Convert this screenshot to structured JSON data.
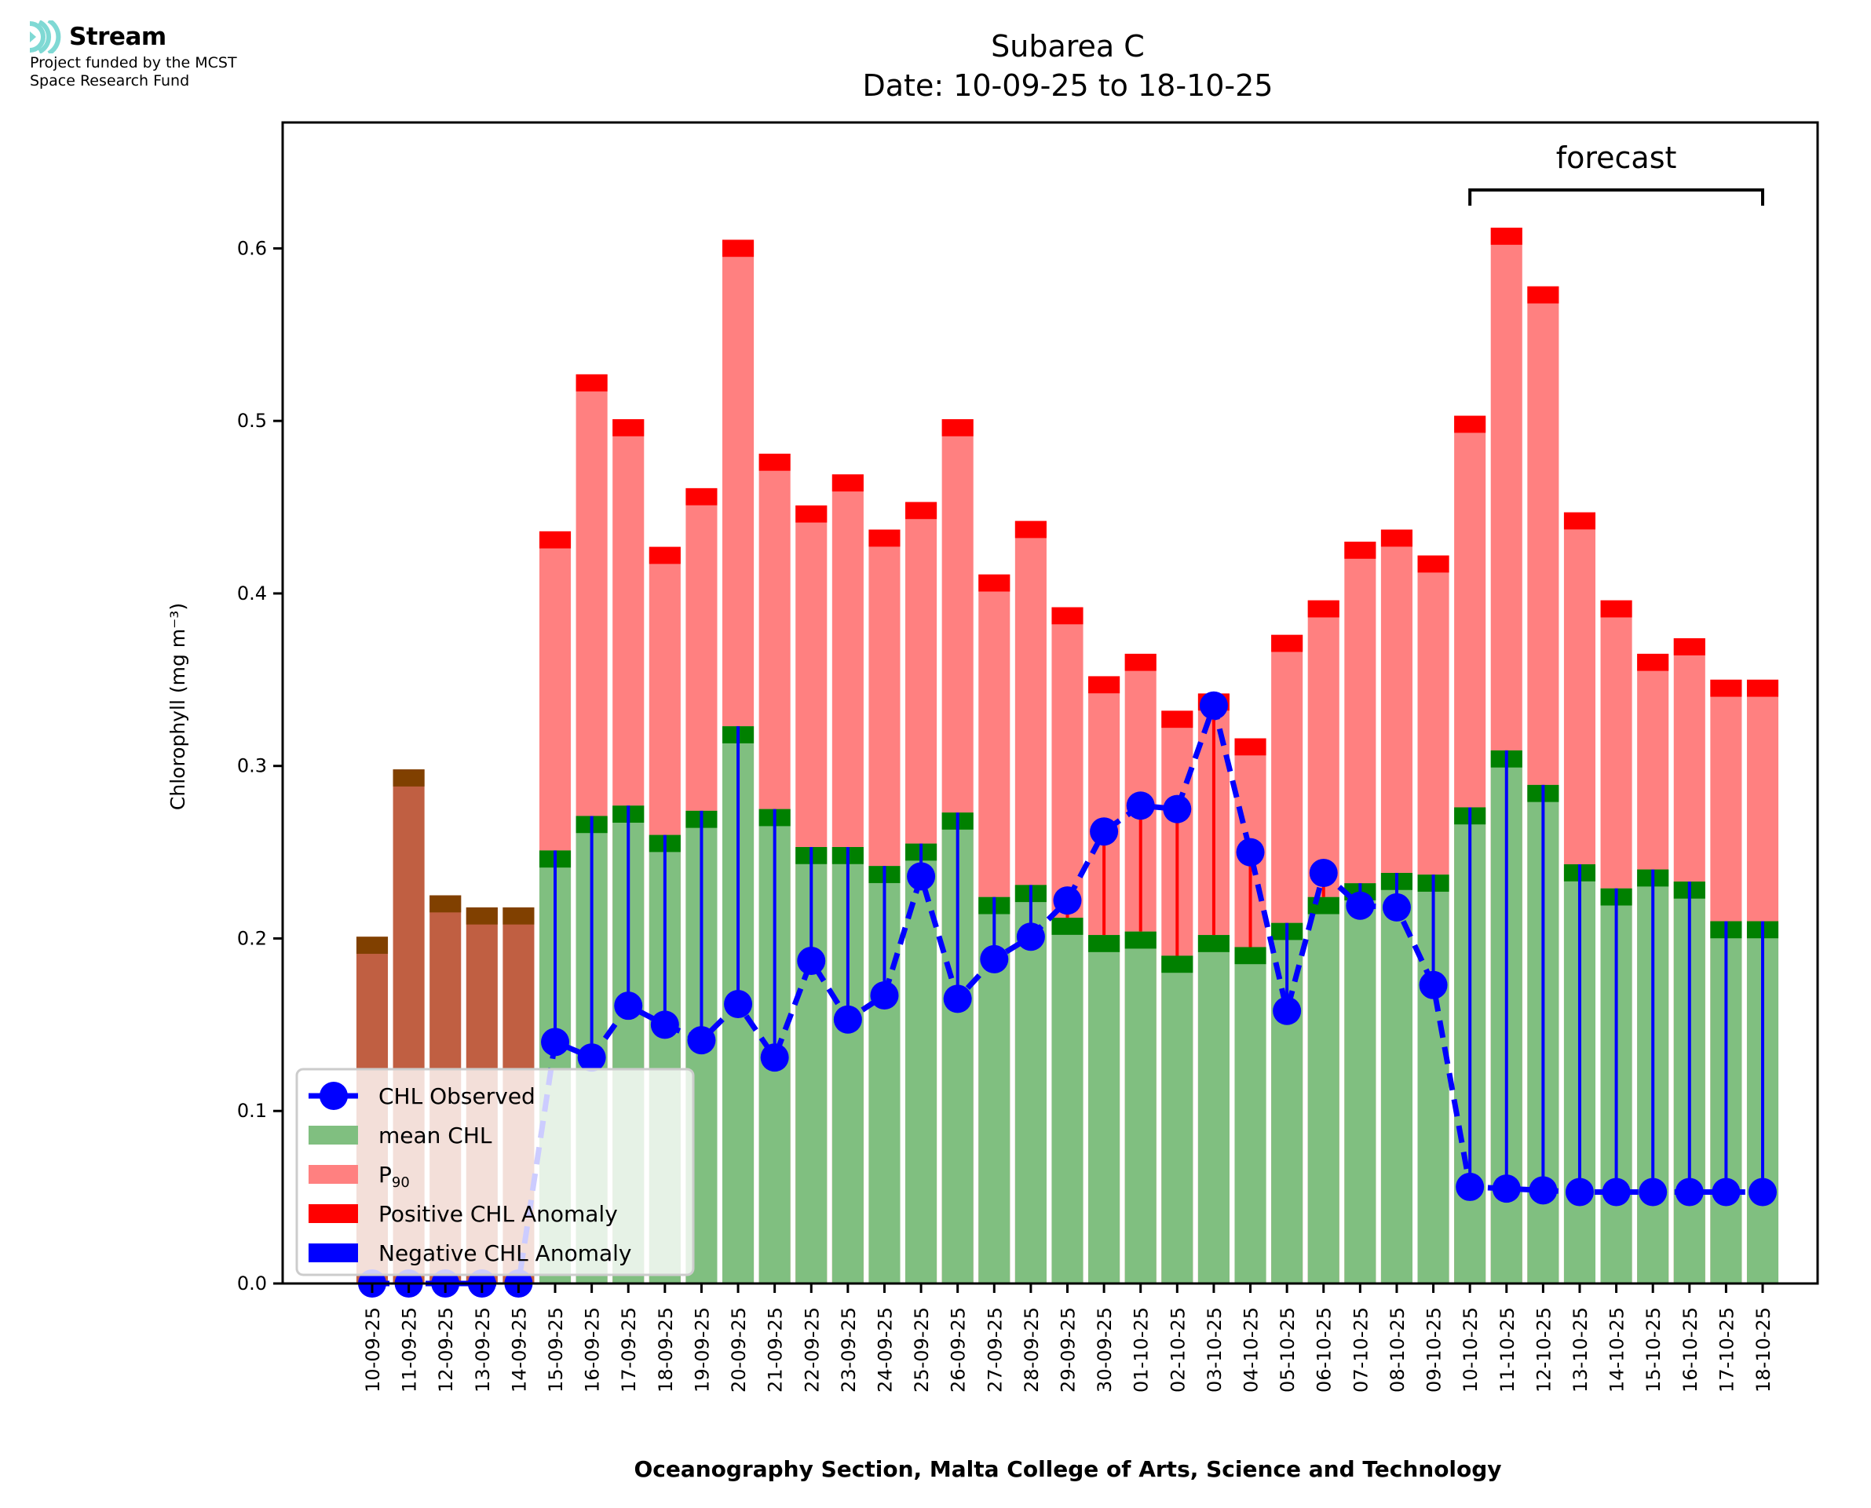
{
  "logo": {
    "brand_name": "Stream",
    "funding_line1": "Project funded by the MCST",
    "funding_line2": "Space Research Fund",
    "icon": "stream-waves-icon",
    "icon_color": "#7FD9D4"
  },
  "footer": {
    "credit": "Oceanography Section, Malta College of Arts, Science and Technology"
  },
  "chart_data": {
    "type": "bar",
    "title": "Subarea C",
    "subtitle": "Date: 10-09-25 to 18-10-25",
    "xlabel": "Oceanography Section, Malta College of Arts, Science and Technology",
    "ylabel": "Chlorophyll (mg m⁻³)",
    "ylim": [
      0,
      0.673
    ],
    "yticks": [
      0.0,
      0.1,
      0.2,
      0.3,
      0.4,
      0.5,
      0.6
    ],
    "ytick_labels": [
      "0.0",
      "0.1",
      "0.2",
      "0.3",
      "0.4",
      "0.5",
      "0.6"
    ],
    "grid": false,
    "legend_position": "lower-left",
    "categories": [
      "10-09-25",
      "11-09-25",
      "12-09-25",
      "13-09-25",
      "14-09-25",
      "15-09-25",
      "16-09-25",
      "17-09-25",
      "18-09-25",
      "19-09-25",
      "20-09-25",
      "21-09-25",
      "22-09-25",
      "23-09-25",
      "24-09-25",
      "25-09-25",
      "26-09-25",
      "27-09-25",
      "28-09-25",
      "29-09-25",
      "30-09-25",
      "01-10-25",
      "02-10-25",
      "03-10-25",
      "04-10-25",
      "05-10-25",
      "06-10-25",
      "07-10-25",
      "08-10-25",
      "09-10-25",
      "10-10-25",
      "11-10-25",
      "12-10-25",
      "13-10-25",
      "14-10-25",
      "15-10-25",
      "16-10-25",
      "17-10-25",
      "18-10-25"
    ],
    "series": [
      {
        "name": "CHL Observed",
        "kind": "line-markers-dashed",
        "color": "#0000FF",
        "values": [
          0.0,
          0.0,
          0.0,
          0.0,
          0.0,
          0.14,
          0.131,
          0.161,
          0.15,
          0.141,
          0.162,
          0.131,
          0.187,
          0.153,
          0.167,
          0.236,
          0.165,
          0.188,
          0.201,
          0.222,
          0.262,
          0.277,
          0.275,
          0.335,
          0.25,
          0.158,
          0.238,
          0.219,
          0.218,
          0.173,
          0.056,
          0.055,
          0.054,
          0.053,
          0.053,
          0.053,
          0.053,
          0.053,
          0.053
        ]
      },
      {
        "name": "mean CHL",
        "kind": "bar",
        "color": "#80BF80",
        "cap_color": "#008000",
        "values": [
          0.201,
          0.298,
          0.225,
          0.218,
          0.218,
          0.251,
          0.271,
          0.277,
          0.26,
          0.274,
          0.323,
          0.275,
          0.253,
          0.253,
          0.242,
          0.255,
          0.273,
          0.224,
          0.231,
          0.212,
          0.202,
          0.204,
          0.19,
          0.202,
          0.195,
          0.209,
          0.224,
          0.232,
          0.238,
          0.237,
          0.276,
          0.309,
          0.289,
          0.243,
          0.229,
          0.24,
          0.233,
          0.21,
          0.21
        ]
      },
      {
        "name": "P₉₀",
        "kind": "bar",
        "color": "#FF8080",
        "cap_color": "#FF0000",
        "values": [
          0.201,
          0.298,
          0.225,
          0.218,
          0.218,
          0.436,
          0.527,
          0.501,
          0.427,
          0.461,
          0.605,
          0.481,
          0.451,
          0.469,
          0.437,
          0.453,
          0.501,
          0.411,
          0.442,
          0.392,
          0.352,
          0.365,
          0.332,
          0.342,
          0.316,
          0.376,
          0.396,
          0.43,
          0.437,
          0.422,
          0.503,
          0.612,
          0.578,
          0.447,
          0.396,
          0.365,
          0.374,
          0.35,
          0.35
        ]
      }
    ],
    "overlap_color": "#C05F42",
    "overlap_cap_color": "#804000",
    "anomaly_colors": {
      "positive": "#FF0000",
      "negative": "#0000FF"
    },
    "legend": [
      {
        "label": "CHL Observed",
        "swatch": "line-marker",
        "color": "#0000FF"
      },
      {
        "label": "mean CHL",
        "swatch": "patch",
        "color": "#80BF80"
      },
      {
        "label": "P",
        "label_sub": "90",
        "swatch": "patch",
        "color": "#FF8080"
      },
      {
        "label": "Positive CHL Anomaly",
        "swatch": "patch",
        "color": "#FF0000"
      },
      {
        "label": "Negative CHL Anomaly",
        "swatch": "patch",
        "color": "#0000FF"
      }
    ],
    "annotations": [
      {
        "text": "forecast",
        "span": [
          "10-10-25",
          "18-10-25"
        ],
        "kind": "bracket"
      }
    ]
  }
}
